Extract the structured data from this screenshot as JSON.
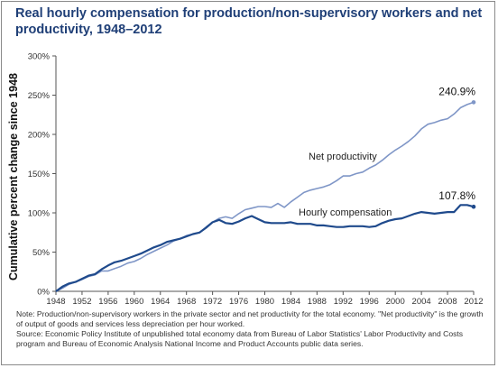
{
  "chart_data": {
    "type": "line",
    "title": "Real hourly compensation for production/non-supervisory workers and net productivity, 1948–2012",
    "ylabel": "Cumulative percent change since 1948",
    "xlabel": "",
    "xlim": [
      1948,
      2012
    ],
    "ylim": [
      0,
      300
    ],
    "x_ticks": [
      "1948",
      "1952",
      "1956",
      "1960",
      "1964",
      "1968",
      "1972",
      "1976",
      "1980",
      "1984",
      "1988",
      "1992",
      "1996",
      "2000",
      "2004",
      "2008",
      "2012"
    ],
    "y_ticks": [
      "0%",
      "50%",
      "100%",
      "150%",
      "200%",
      "250%",
      "300%"
    ],
    "x": [
      1948,
      1949,
      1950,
      1951,
      1952,
      1953,
      1954,
      1955,
      1956,
      1957,
      1958,
      1959,
      1960,
      1961,
      1962,
      1963,
      1964,
      1965,
      1966,
      1967,
      1968,
      1969,
      1970,
      1971,
      1972,
      1973,
      1974,
      1975,
      1976,
      1977,
      1978,
      1979,
      1980,
      1981,
      1982,
      1983,
      1984,
      1985,
      1986,
      1987,
      1988,
      1989,
      1990,
      1991,
      1992,
      1993,
      1994,
      1995,
      1996,
      1997,
      1998,
      1999,
      2000,
      2001,
      2002,
      2003,
      2004,
      2005,
      2006,
      2007,
      2008,
      2009,
      2010,
      2011,
      2012
    ],
    "series": [
      {
        "name": "Net productivity",
        "label": "Net productivity",
        "color": "#7f96c7",
        "end_label": "240.9%",
        "values": [
          0,
          4,
          9,
          12,
          15,
          19,
          21,
          26,
          26,
          29,
          32,
          36,
          38,
          42,
          47,
          51,
          55,
          59,
          64,
          67,
          71,
          73,
          75,
          82,
          88,
          93,
          95,
          93,
          99,
          104,
          106,
          108,
          108,
          107,
          112,
          107,
          114,
          120,
          126,
          129,
          131,
          133,
          136,
          141,
          147,
          147,
          150,
          152,
          157,
          161,
          167,
          174,
          180,
          185,
          191,
          198,
          207,
          213,
          215,
          218,
          220,
          226,
          234,
          238,
          240.9
        ]
      },
      {
        "name": "Hourly compensation",
        "label": "Hourly compensation",
        "color": "#1f4a8c",
        "end_label": "107.8%",
        "values": [
          0,
          6,
          10,
          12,
          16,
          20,
          22,
          28,
          33,
          37,
          39,
          42,
          45,
          48,
          52,
          56,
          59,
          63,
          65,
          67,
          70,
          73,
          75,
          81,
          88,
          91,
          87,
          86,
          89,
          93,
          96,
          92,
          88,
          87,
          87,
          87,
          88,
          86,
          86,
          86,
          84,
          84,
          83,
          82,
          82,
          83,
          83,
          83,
          82,
          83,
          87,
          90,
          92,
          93,
          96,
          99,
          101,
          100,
          99,
          100,
          101,
          101,
          110,
          110,
          107.8
        ]
      }
    ],
    "grid": false,
    "legend": "inline labels"
  },
  "footer": {
    "note": "Note: Production/non-supervisory workers in the private sector and net productivity for the total economy. \"Net productivity\" is the growth of output of goods and services less depreciation per hour worked.",
    "source": "Source: Economic Policy Institute of unpublished total economy data from Bureau of Labor Statistics' Labor Productivity and Costs program and Bureau of Economic Analysis National Income and Product Accounts public data series."
  }
}
